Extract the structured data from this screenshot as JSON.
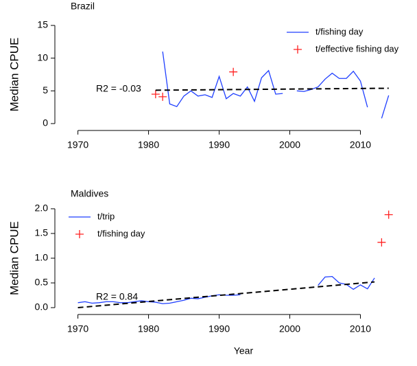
{
  "chart_data": [
    {
      "type": "line",
      "title": "Brazil",
      "ylabel": "Median CPUE",
      "annotation": "R2 = -0.03",
      "xlim": [
        1968,
        2015
      ],
      "xticks": [
        1970,
        1980,
        1990,
        2000,
        2010
      ],
      "ylim": [
        -1,
        16
      ],
      "yticks": [
        0,
        5,
        10,
        15
      ],
      "legend": "top-right",
      "series": [
        {
          "name": "t/fishing day",
          "color": "#1f3fff",
          "style": "line",
          "x": [
            1982,
            1983,
            1984,
            1985,
            1986,
            1987,
            1988,
            1989,
            1990,
            1991,
            1992,
            1993,
            1994,
            1995,
            1996,
            1997,
            1998,
            1999,
            2000,
            2001,
            2002,
            2003,
            2004,
            2005,
            2006,
            2007,
            2008,
            2009,
            2010,
            2011,
            2012,
            2013,
            2014
          ],
          "values": [
            11,
            3.0,
            2.6,
            4.2,
            5.0,
            4.2,
            4.4,
            4.0,
            7.2,
            3.8,
            4.6,
            4.2,
            5.6,
            3.4,
            7.0,
            8.1,
            4.5,
            4.6,
            null,
            5.0,
            4.9,
            5.2,
            5.6,
            6.8,
            7.7,
            6.9,
            6.9,
            8.0,
            6.5,
            2.5,
            null,
            0.8,
            4.3
          ]
        },
        {
          "name": "t/effective fishing day",
          "color": "#ff2020",
          "style": "cross",
          "x": [
            1981,
            1982,
            1992
          ],
          "values": [
            4.5,
            4.1,
            7.9
          ]
        },
        {
          "color": "#000000",
          "style": "dashed",
          "x": [
            1981,
            2014
          ],
          "values": [
            5.1,
            5.4
          ]
        }
      ]
    },
    {
      "type": "line",
      "title": "Maldives",
      "ylabel": "Median CPUE",
      "xlabel": "Year",
      "annotation": "R2 = 0.84",
      "xlim": [
        1968,
        2015
      ],
      "xticks": [
        1970,
        1980,
        1990,
        2000,
        2010
      ],
      "ylim": [
        -0.1,
        2.1
      ],
      "yticks": [
        {
          "value": 0,
          "label": "0.0"
        },
        0.5,
        {
          "value": 1,
          "label": "1.0"
        },
        1.5,
        {
          "value": 2,
          "label": "2.0"
        }
      ],
      "legend": "top-left",
      "series": [
        {
          "name": "t/trip",
          "color": "#1f3fff",
          "style": "line",
          "x": [
            1970,
            1971,
            1972,
            1973,
            1974,
            1975,
            1976,
            1977,
            1978,
            1979,
            1980,
            1981,
            1982,
            1983,
            1984,
            1985,
            1986,
            1987,
            1988,
            1989,
            1990,
            1991,
            1992,
            1993,
            1994,
            2004,
            2005,
            2006,
            2007,
            2008,
            2009,
            2010,
            2011,
            2012
          ],
          "values": [
            0.1,
            0.12,
            0.09,
            0.1,
            0.12,
            0.12,
            0.1,
            0.1,
            0.12,
            0.14,
            0.12,
            0.11,
            0.08,
            0.09,
            0.12,
            0.15,
            0.19,
            0.18,
            0.21,
            0.24,
            0.26,
            0.25,
            0.25,
            0.26,
            null,
            0.45,
            0.62,
            0.63,
            0.5,
            0.47,
            0.37,
            0.46,
            0.38,
            0.6
          ]
        },
        {
          "name": "t/fishing day",
          "color": "#ff2020",
          "style": "cross",
          "x": [
            2013,
            2014
          ],
          "values": [
            1.32,
            1.88
          ]
        },
        {
          "color": "#000000",
          "style": "dashed",
          "x": [
            1970,
            2012
          ],
          "values": [
            0.0,
            0.52
          ]
        }
      ]
    }
  ]
}
